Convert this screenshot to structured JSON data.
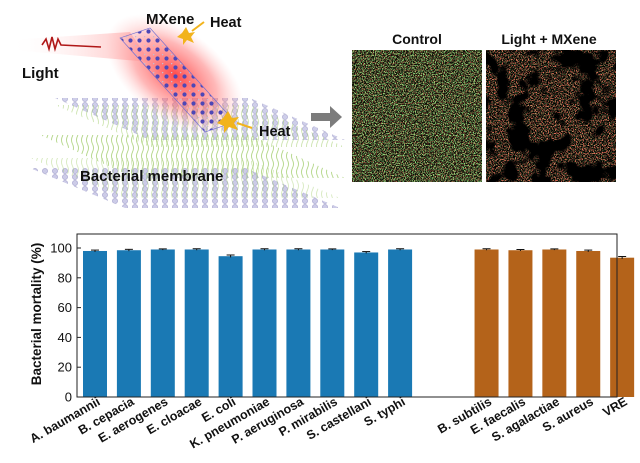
{
  "schematic": {
    "label_mxene": "MXene",
    "label_heat_top": "Heat",
    "label_heat_right": "Heat",
    "label_light": "Light",
    "label_membrane": "Bacterial membrane"
  },
  "micrographs": {
    "control_label": "Control",
    "treated_label": "Light + MXene",
    "live_color": "#3fae35",
    "dead_color": "#d81f1a"
  },
  "chart_data": {
    "type": "bar",
    "ylabel": "Bacterial mortality (%)",
    "xlabel": "",
    "ylim": [
      0,
      100
    ],
    "yticks": [
      0,
      20,
      40,
      60,
      80,
      100
    ],
    "groups": [
      {
        "color": "#1a79b4",
        "categories": [
          "A. baumannii",
          "B. cepacia",
          "E. aerogenes",
          "E. cloacae",
          "E. coli",
          "K. pneumoniae",
          "P. aeruginosa",
          "P. mirabilis",
          "S. castellani",
          "S. typhi"
        ],
        "values": [
          98,
          98.5,
          99,
          99,
          94.5,
          99,
          99,
          99,
          97,
          99
        ],
        "errors": [
          0.6,
          0.6,
          0.4,
          0.5,
          0.8,
          0.5,
          0.5,
          0.4,
          0.6,
          0.5
        ]
      },
      {
        "color": "#b4631a",
        "categories": [
          "B. subtilis",
          "E. faecalis",
          "S. agalactiae",
          "S. aureus",
          "VRE"
        ],
        "values": [
          99,
          98.5,
          99,
          98,
          93.5
        ],
        "errors": [
          0.5,
          0.5,
          0.4,
          0.6,
          0.8
        ]
      }
    ]
  }
}
